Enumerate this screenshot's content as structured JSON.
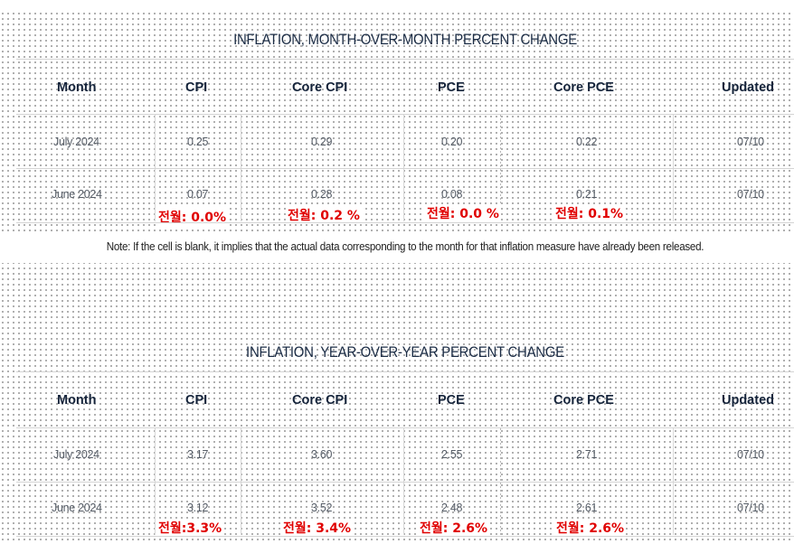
{
  "mom": {
    "title": "INFLATION, MONTH-OVER-MONTH PERCENT CHANGE",
    "headers": [
      "Month",
      "CPI",
      "Core CPI",
      "PCE",
      "Core PCE",
      "Updated"
    ],
    "rows": [
      {
        "month": "July 2024",
        "cpi": "0.25",
        "core_cpi": "0.29",
        "pce": "0.20",
        "core_pce": "0.22",
        "updated": "07/10"
      },
      {
        "month": "June 2024",
        "cpi": "0.07",
        "core_cpi": "0.28",
        "pce": "0.08",
        "core_pce": "0.21",
        "updated": "07/10"
      }
    ],
    "annotations": [
      "전월: 0.0%",
      "전월: 0.2 %",
      "전월: 0.0 %",
      "전월: 0.1%"
    ]
  },
  "note": "Note: If the cell is blank, it implies that the actual data corresponding to the month for that inflation measure have already been released.",
  "yoy": {
    "title": "INFLATION, YEAR-OVER-YEAR PERCENT CHANGE",
    "headers": [
      "Month",
      "CPI",
      "Core CPI",
      "PCE",
      "Core PCE",
      "Updated"
    ],
    "rows": [
      {
        "month": "July 2024",
        "cpi": "3.17",
        "core_cpi": "3.60",
        "pce": "2.55",
        "core_pce": "2.71",
        "updated": "07/10"
      },
      {
        "month": "June 2024",
        "cpi": "3.12",
        "core_cpi": "3.52",
        "pce": "2.48",
        "core_pce": "2.61",
        "updated": "07/10"
      }
    ],
    "annotations": [
      "전월:3.3%",
      "전월: 3.4%",
      "전월: 2.6%",
      "전월: 2.6%"
    ]
  },
  "colors": {
    "annotation": "#e00000",
    "header_text": "#14233a",
    "title_text": "#1b2c45",
    "rule": "#d4d4d4"
  }
}
